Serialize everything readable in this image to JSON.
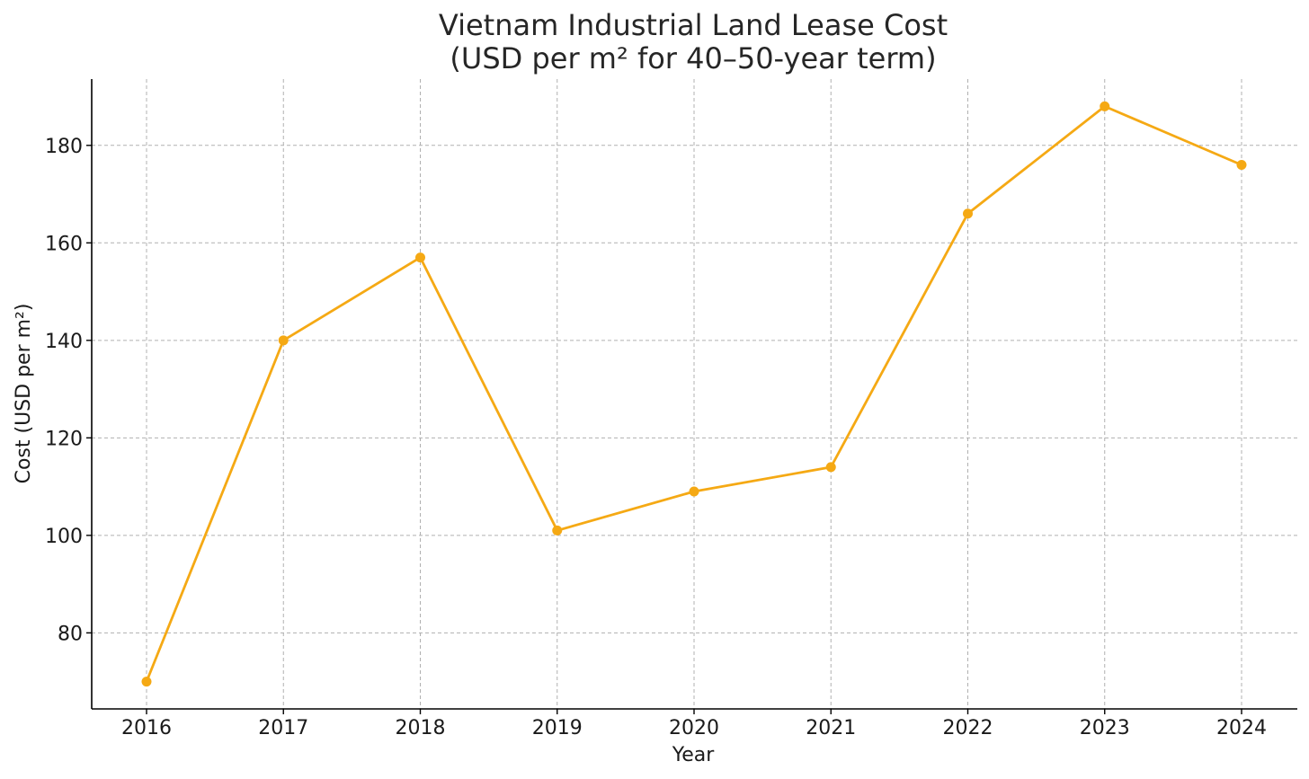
{
  "chart_data": {
    "type": "line",
    "title": [
      "Vietnam Industrial Land Lease Cost",
      "(USD per m² for 40–50-year term)"
    ],
    "xlabel": "Year",
    "ylabel": "Cost (USD per m²)",
    "categories": [
      "2016",
      "2017",
      "2018",
      "2019",
      "2020",
      "2021",
      "2022",
      "2023",
      "2024"
    ],
    "series": [
      {
        "name": "Cost",
        "values": [
          70,
          140,
          157,
          101,
          109,
          114,
          166,
          188,
          176
        ],
        "color": "#F5A914"
      }
    ],
    "ylim": [
      64.4,
      193.6
    ],
    "yticks": [
      80,
      100,
      120,
      140,
      160,
      180
    ],
    "grid": true,
    "legend": "none"
  }
}
